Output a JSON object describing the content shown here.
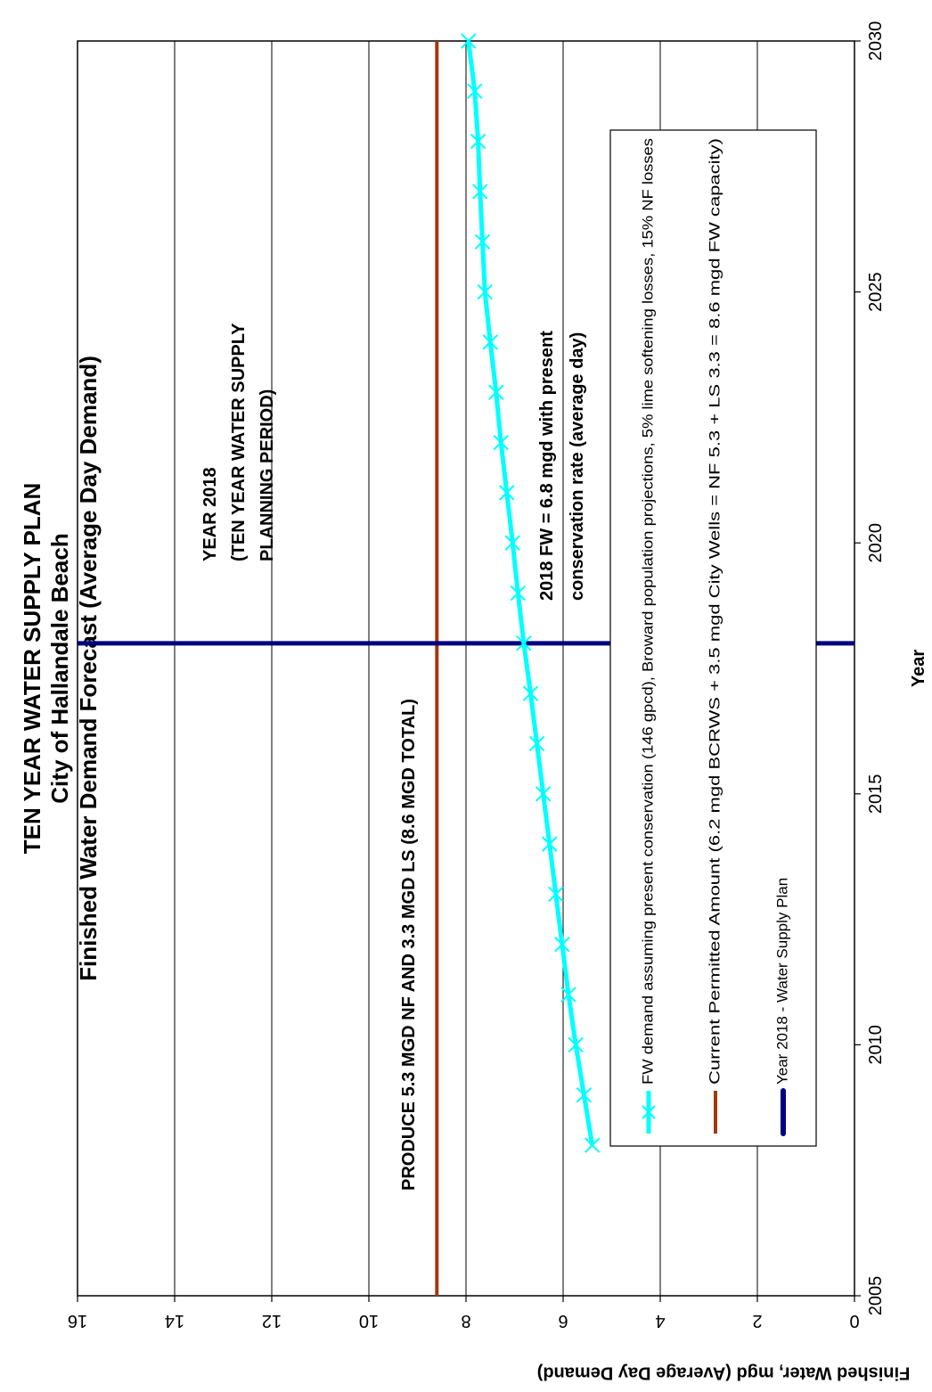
{
  "chart_data": {
    "type": "line",
    "title": "TEN YEAR WATER SUPPLY PLAN",
    "subtitle": "City of Hallandale Beach",
    "subtitle2": "Finished Water Demand Forecast (Average Day Demand)",
    "xlabel": "Year",
    "ylabel": "Finished Water, mgd (Average Day Demand)",
    "xlim": [
      2005,
      2030
    ],
    "ylim": [
      0,
      16
    ],
    "x_ticks": [
      "2005",
      "2010",
      "2015",
      "2020",
      "2025",
      "2030"
    ],
    "y_ticks": [
      "0",
      "2",
      "4",
      "6",
      "8",
      "10",
      "12",
      "14",
      "16"
    ],
    "grid": true,
    "orientation": "rotated 90 degrees",
    "legend_position": "bottom-right",
    "series": [
      {
        "name": "FW demand assuming present conservation (146 gpcd), Broward population projections, 5% lime softening losses, 15% NF losses",
        "color": "#00ffff",
        "marker": "x",
        "x": [
          2008,
          2009,
          2010,
          2011,
          2012,
          2013,
          2014,
          2015,
          2016,
          2017,
          2018,
          2019,
          2020,
          2021,
          2022,
          2023,
          2024,
          2025,
          2026,
          2027,
          2028,
          2029,
          2030
        ],
        "values": [
          5.4,
          5.57,
          5.74,
          5.89,
          6.02,
          6.15,
          6.28,
          6.41,
          6.54,
          6.67,
          6.81,
          6.93,
          7.04,
          7.16,
          7.28,
          7.38,
          7.5,
          7.61,
          7.66,
          7.71,
          7.75,
          7.82,
          7.95
        ]
      },
      {
        "name": "Current Permitted Amount (6.2 mgd BCRWS + 3.5 mgd City Wells = NF 5.3 + LS 3.3 = 8.6 mgd FW capacity)",
        "color": "#a0390f",
        "type": "hline",
        "value": 8.6
      },
      {
        "name": "Year 2018 - Water Supply Plan",
        "color": "#000080",
        "type": "vline",
        "x_value": 2018
      }
    ],
    "annotations": [
      {
        "lines": [
          "YEAR 2018",
          "(TEN YEAR WATER SUPPLY",
          "PLANNING PERIOD)"
        ]
      },
      {
        "lines": [
          "2018 FW = 6.8 mgd with present",
          "conservation rate (average day)"
        ]
      },
      {
        "lines": [
          "PRODUCE 5.3 MGD NF AND 3.3 MGD LS (8.6 MGD TOTAL)"
        ]
      }
    ]
  }
}
